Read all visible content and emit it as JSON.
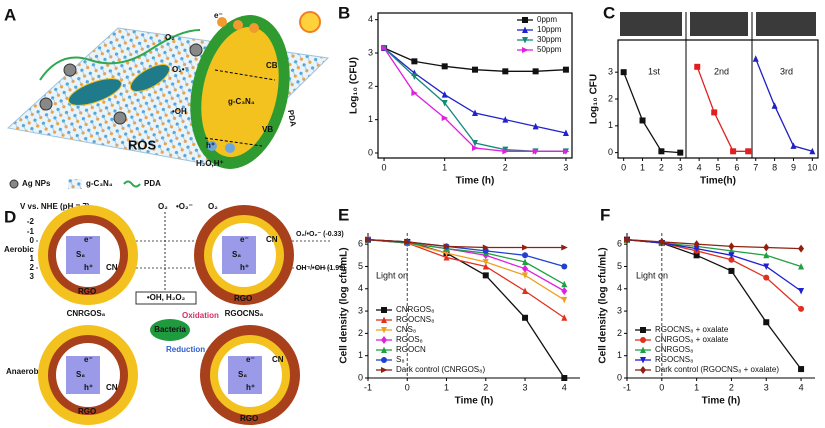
{
  "diagrams": {
    "A": {
      "panel": "A",
      "legend": [
        "Ag NPs",
        "g-C₃N₄",
        "PDA"
      ],
      "labels": {
        "ros": "ROS",
        "oh": "•OH",
        "o2": "O₂",
        "o2r": "O₂•⁻",
        "cb": "CB",
        "vb": "VB",
        "gcn": "g-C₃N₄",
        "e": "e⁻",
        "h": "h⁺",
        "h2o": "H₂O,H⁺",
        "pda": "PDA"
      }
    },
    "D": {
      "panel": "D",
      "axis_title": "V vs. NHE (pH = 7)",
      "scale": [
        "-2",
        "-1",
        "0",
        "1",
        "2",
        "3"
      ],
      "aerobic": "Aerobic",
      "anaerobic": "Anaerobic",
      "left_label": "CNRGOS₈",
      "right_label": "RGOCNS₈",
      "o2_potential": "O₂/•O₂⁻ (-0.33)",
      "oh_potential": "OH⁻/•OH (1.99)",
      "ros": "•OH, H₂O₂",
      "oxidation": "Oxidation",
      "bacteria": "Bacteria",
      "reduction": "Reduction",
      "s8": "S₈",
      "rgo": "RGO",
      "cn": "CN",
      "e": "e⁻",
      "h": "h⁺",
      "o2": "O₂",
      "o2r": "•O₂⁻"
    }
  },
  "chart_data": [
    {
      "type": "line",
      "panel": "B",
      "xlabel": "Time (h)",
      "ylabel": "Log₁₀ (CFU)",
      "x": [
        0,
        0.5,
        1,
        1.5,
        2,
        2.5,
        3
      ],
      "xlim": [
        -0.1,
        3.1
      ],
      "ylim": [
        -0.15,
        4.2
      ],
      "xticks": [
        0,
        1,
        2,
        3
      ],
      "yticks": [
        0,
        1,
        2,
        3,
        4
      ],
      "legend": "upper right",
      "series": [
        {
          "name": "0ppm",
          "color": "#111111",
          "marker": "square",
          "values": [
            3.15,
            2.75,
            2.6,
            2.5,
            2.45,
            2.45,
            2.5
          ]
        },
        {
          "name": "10ppm",
          "color": "#2222cc",
          "marker": "triangle",
          "values": [
            3.15,
            2.4,
            1.75,
            1.2,
            1.0,
            0.8,
            0.6
          ]
        },
        {
          "name": "30ppm",
          "color": "#138a7a",
          "marker": "triangle-down",
          "values": [
            3.15,
            2.3,
            1.5,
            0.3,
            0.1,
            0.05,
            0.05
          ]
        },
        {
          "name": "50ppm",
          "color": "#e020e0",
          "marker": "triangle-right",
          "values": [
            3.15,
            1.8,
            1.05,
            0.15,
            0.05,
            0.05,
            0.05
          ]
        }
      ]
    },
    {
      "type": "line",
      "xlabel": "Time(h)",
      "ylabel": "Log₁₀ CFU",
      "panel": "C",
      "xlim": [
        -0.3,
        10.3
      ],
      "ylim": [
        -0.2,
        4.2
      ],
      "xticks": [
        0,
        1,
        2,
        3,
        4,
        5,
        6,
        7,
        8,
        9,
        10
      ],
      "yticks": [
        0,
        1,
        2,
        3
      ],
      "annotations": [
        "1st",
        "2nd",
        "3rd"
      ],
      "series": [
        {
          "color": "#111111",
          "marker": "square",
          "x": [
            0,
            1,
            2,
            3
          ],
          "values": [
            3.0,
            1.2,
            0.05,
            0.0
          ]
        },
        {
          "color": "#e02020",
          "marker": "square",
          "x": [
            3.9,
            4.8,
            5.8,
            6.6
          ],
          "values": [
            3.2,
            1.5,
            0.05,
            0.05
          ]
        },
        {
          "color": "#2020c0",
          "marker": "triangle",
          "x": [
            7,
            8,
            9,
            10
          ],
          "values": [
            3.5,
            1.75,
            0.25,
            0.05
          ]
        }
      ]
    },
    {
      "type": "line",
      "panel": "E",
      "xlabel": "Time (h)",
      "ylabel": "Cell density (log cfu/mL)",
      "x": [
        -1,
        0,
        1,
        2,
        3,
        4
      ],
      "xlim": [
        -1,
        4.4
      ],
      "ylim": [
        0,
        6.5
      ],
      "xticks": [
        -1,
        0,
        1,
        2,
        3,
        4
      ],
      "yticks": [
        0,
        1,
        2,
        3,
        4,
        5,
        6
      ],
      "legend": "lower left",
      "reference_line_x": 0,
      "annotations": [
        "Light on"
      ],
      "series": [
        {
          "name": "CNRGOS₈",
          "color": "#111111",
          "marker": "square",
          "values": [
            6.2,
            6.1,
            5.6,
            4.6,
            2.7,
            0
          ]
        },
        {
          "name": "RGOCNS₈",
          "color": "#e03020",
          "marker": "triangle",
          "values": [
            6.2,
            6.05,
            5.4,
            5.0,
            3.9,
            2.7
          ]
        },
        {
          "name": "CNS₈",
          "color": "#f0a020",
          "marker": "triangle-down",
          "values": [
            6.2,
            6.05,
            5.6,
            5.2,
            4.6,
            3.5
          ]
        },
        {
          "name": "RGOS₈",
          "color": "#e020e0",
          "marker": "diamond",
          "values": [
            6.2,
            6.05,
            5.8,
            5.5,
            4.9,
            3.9
          ]
        },
        {
          "name": "RGOCN",
          "color": "#20a040",
          "marker": "triangle",
          "values": [
            6.2,
            6.05,
            5.8,
            5.6,
            5.2,
            4.2
          ]
        },
        {
          "name": "S₈",
          "color": "#2040d0",
          "marker": "circle",
          "values": [
            6.2,
            6.1,
            5.9,
            5.7,
            5.5,
            5.0
          ]
        },
        {
          "name": "Dark control (CNRGOS₈)",
          "color": "#902010",
          "marker": "triangle-right",
          "values": [
            6.2,
            6.1,
            5.9,
            5.85,
            5.85,
            5.85
          ]
        }
      ]
    },
    {
      "type": "line",
      "panel": "F",
      "xlabel": "Time (h)",
      "ylabel": "Cell density (log cfu/mL)",
      "x": [
        -1,
        0,
        1,
        2,
        3,
        4
      ],
      "xlim": [
        -1,
        4.4
      ],
      "ylim": [
        0,
        6.5
      ],
      "xticks": [
        -1,
        0,
        1,
        2,
        3,
        4
      ],
      "yticks": [
        0,
        1,
        2,
        3,
        4,
        5,
        6
      ],
      "legend": "lower left",
      "reference_line_x": 0,
      "annotations": [
        "Light on"
      ],
      "series": [
        {
          "name": "RGOCNS₈ + oxalate",
          "color": "#111111",
          "marker": "square",
          "values": [
            6.2,
            6.05,
            5.5,
            4.8,
            2.5,
            0.4
          ]
        },
        {
          "name": "CNRGOS₈ + oxalate",
          "color": "#e03020",
          "marker": "circle",
          "values": [
            6.2,
            6.05,
            5.7,
            5.3,
            4.5,
            3.1
          ]
        },
        {
          "name": "CNRGOS₈",
          "color": "#20a040",
          "marker": "triangle",
          "values": [
            6.2,
            6.05,
            5.9,
            5.7,
            5.5,
            5.0
          ]
        },
        {
          "name": "RGOCNS₈",
          "color": "#2020d0",
          "marker": "triangle-down",
          "values": [
            6.2,
            6.05,
            5.8,
            5.5,
            5.0,
            3.9
          ]
        },
        {
          "name": "Dark control (RGOCNS₈ + oxalate)",
          "color": "#902010",
          "marker": "diamond",
          "values": [
            6.2,
            6.1,
            6.0,
            5.9,
            5.85,
            5.8
          ]
        }
      ]
    }
  ]
}
